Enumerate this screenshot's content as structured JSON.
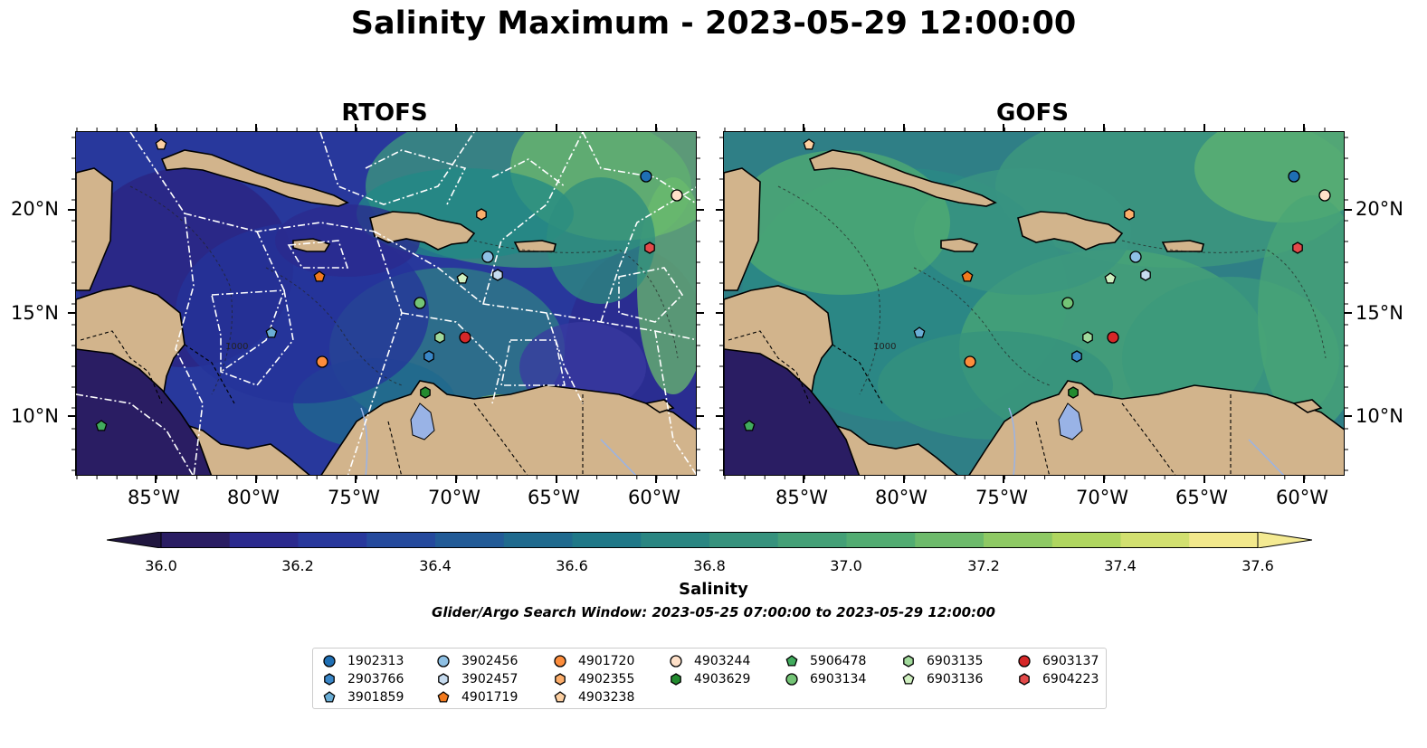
{
  "title": "Salinity Maximum - 2023-05-29 12:00:00",
  "panels": [
    {
      "title": "RTOFS"
    },
    {
      "title": "GOFS"
    }
  ],
  "lon_labels": [
    "85°W",
    "80°W",
    "75°W",
    "70°W",
    "65°W",
    "60°W"
  ],
  "lat_labels": [
    "20°N",
    "15°N",
    "10°N"
  ],
  "contour_label": "1000",
  "colorbar": {
    "label": "Salinity",
    "ticks": [
      "36.0",
      "36.2",
      "36.4",
      "36.6",
      "36.8",
      "37.0",
      "37.2",
      "37.4",
      "37.6"
    ],
    "colors": [
      "#2a1d63",
      "#2b2a8e",
      "#28389c",
      "#254a9d",
      "#225b97",
      "#1f6a8e",
      "#1f7888",
      "#2a8682",
      "#36927d",
      "#44a077",
      "#52ac72",
      "#6dba6b",
      "#8ec964",
      "#b0d660",
      "#d2e070",
      "#f2e88c"
    ],
    "min_color": "#20163f",
    "max_color": "#f4ea92"
  },
  "search_window": "Glider/Argo Search Window: 2023-05-25 07:00:00 to 2023-05-29 12:00:00",
  "colors": {
    "land": "#d2b48c",
    "lake": "#99b3e6",
    "gofs_ocean": "#2f7f86",
    "rtofs_ocean": "#28389c"
  },
  "legend": [
    {
      "id": "1902313",
      "marker": "circle",
      "color": "#1f6fb4"
    },
    {
      "id": "2903766",
      "marker": "hexagon",
      "color": "#3a87c8"
    },
    {
      "id": "3901859",
      "marker": "pentagon",
      "color": "#6aaed6"
    },
    {
      "id": "3902456",
      "marker": "circle",
      "color": "#8ec0e4"
    },
    {
      "id": "3902457",
      "marker": "hexagon",
      "color": "#c6dbef"
    },
    {
      "id": "4901720",
      "marker": "circle",
      "color": "#fd8d3c"
    },
    {
      "id": "4902355",
      "marker": "hexagon",
      "color": "#fdae6b"
    },
    {
      "id": "4901719",
      "marker": "pentagon",
      "color": "#f27a1e"
    },
    {
      "id": "4903238",
      "marker": "pentagon",
      "color": "#fdd0a2"
    },
    {
      "id": "4903244",
      "marker": "circle",
      "color": "#fee0c8"
    },
    {
      "id": "4903629",
      "marker": "hexagon",
      "color": "#238b2f"
    },
    {
      "id": "5906478",
      "marker": "pentagon",
      "color": "#41ab5d"
    },
    {
      "id": "6903134",
      "marker": "circle",
      "color": "#74c476"
    },
    {
      "id": "6903135",
      "marker": "hexagon",
      "color": "#a1d99b"
    },
    {
      "id": "6903136",
      "marker": "pentagon",
      "color": "#d0f0c0"
    },
    {
      "id": "6903137",
      "marker": "circle",
      "color": "#d62728"
    },
    {
      "id": "6904223",
      "marker": "hexagon",
      "color": "#e34a4a"
    }
  ]
}
